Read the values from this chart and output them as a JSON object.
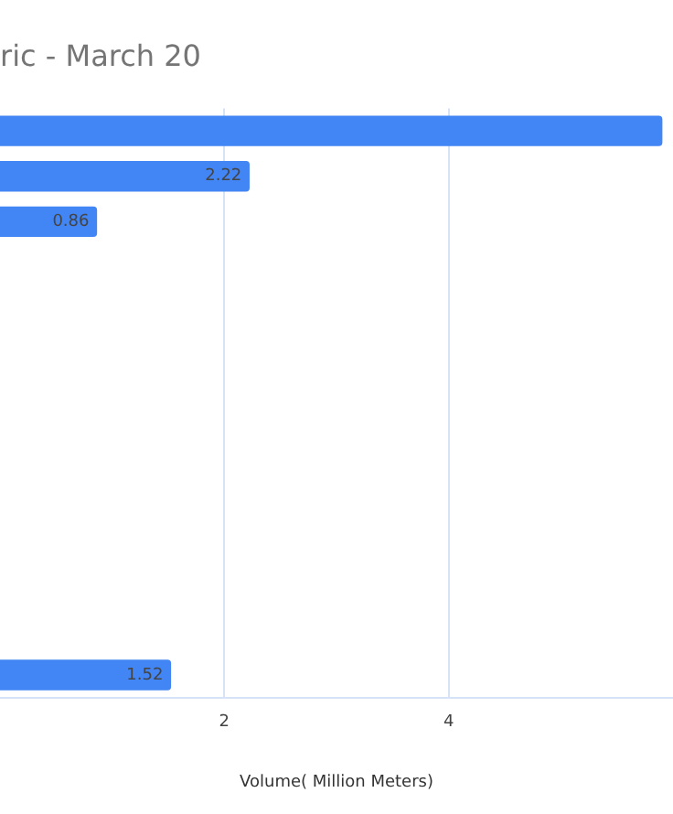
{
  "chart_data": {
    "type": "bar",
    "orientation": "horizontal",
    "title": "ric - March 20",
    "xlabel": "Volume( Million Meters)",
    "categories": [
      null,
      null,
      null,
      null,
      null,
      null,
      null,
      null,
      null,
      null,
      null,
      null,
      null
    ],
    "values": [
      5.9,
      2.22,
      0.86,
      null,
      null,
      null,
      null,
      null,
      null,
      null,
      null,
      null,
      1.52
    ],
    "value_labels": [
      null,
      "2.22",
      "0.86",
      null,
      null,
      null,
      null,
      null,
      null,
      null,
      null,
      null,
      "1.52"
    ],
    "color": "#4285f4",
    "xlim": [
      0,
      6
    ],
    "xticks": [
      2,
      4
    ],
    "grid": "x",
    "legend": false,
    "tick_labels": "x"
  }
}
